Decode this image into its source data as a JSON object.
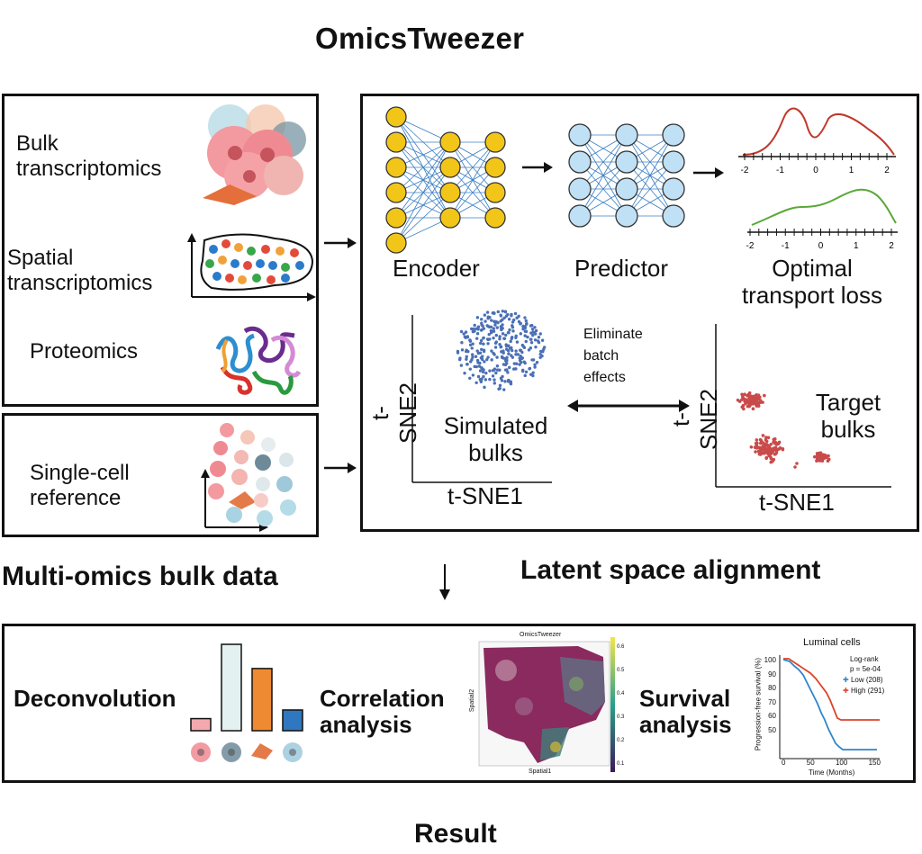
{
  "title": "OmicsTweezer",
  "input_panel": {
    "items": [
      {
        "label_line1": "Bulk",
        "label_line2": "transcriptomics"
      },
      {
        "label_line1": "Spatial",
        "label_line2": "transcriptomics"
      },
      {
        "label_line1": "Proteomics"
      }
    ],
    "section_label": "Multi-omics bulk data"
  },
  "reference_panel": {
    "label_line1": "Single-cell",
    "label_line2": "reference"
  },
  "model_panel": {
    "encoder_label": "Encoder",
    "predictor_label": "Predictor",
    "ot_label_line1": "Optimal",
    "ot_label_line2": "transport loss",
    "ot_tick_labels_top": [
      "-2",
      "-1",
      "0",
      "1",
      "2"
    ],
    "ot_tick_labels_bottom": [
      "-2",
      "-1",
      "0",
      "1",
      "2"
    ],
    "ot_colors": {
      "top": "#c0392b",
      "bottom": "#5aa83a"
    },
    "tsne_left": {
      "ylabel": "t-SNE2",
      "xlabel": "t-SNE1",
      "label_line1": "Simulated",
      "label_line2": "bulks",
      "color": "#4a6fb5"
    },
    "tsne_right": {
      "ylabel": "t-SNE2",
      "xlabel": "t-SNE1",
      "label_line1": "Target",
      "label_line2": "bulks",
      "color": "#c94a4a"
    },
    "batch_label_line1": "Eliminate",
    "batch_label_line2": "batch",
    "batch_label_line3": "effects",
    "section_label": "Latent space alignment"
  },
  "result_panel": {
    "deconvolution_label": "Deconvolution",
    "correlation_label_line1": "Correlation",
    "correlation_label_line2": "analysis",
    "survival_label_line1": "Survival",
    "survival_label_line2": "analysis",
    "bar_values": [
      0.14,
      1.0,
      0.72,
      0.24
    ],
    "bar_colors": [
      "#f3a9ae",
      "#e3f1f0",
      "#ee8a32",
      "#2f78bf"
    ],
    "spatial_map": {
      "title": "OmicsTweezer",
      "xlabel": "Spatial1",
      "ylabel": "Spatial2",
      "colorbar_ticks": [
        "0.6",
        "0.5",
        "0.4",
        "0.3",
        "0.2",
        "0.1"
      ]
    },
    "km_plot": {
      "title": "Luminal cells",
      "ylabel": "Progression-free survival (%)",
      "xlabel": "Time (Months)",
      "yticks": [
        "100",
        "90",
        "80",
        "70",
        "60",
        "50"
      ],
      "xticks": [
        "0",
        "50",
        "100",
        "150"
      ],
      "logrank_line1": "Log-rank",
      "logrank_line2": "p = 5e-04",
      "legend_low": "Low (208)",
      "legend_high": "High (291)",
      "low_color": "#2f86c8",
      "high_color": "#d9452b"
    },
    "section_label": "Result"
  }
}
